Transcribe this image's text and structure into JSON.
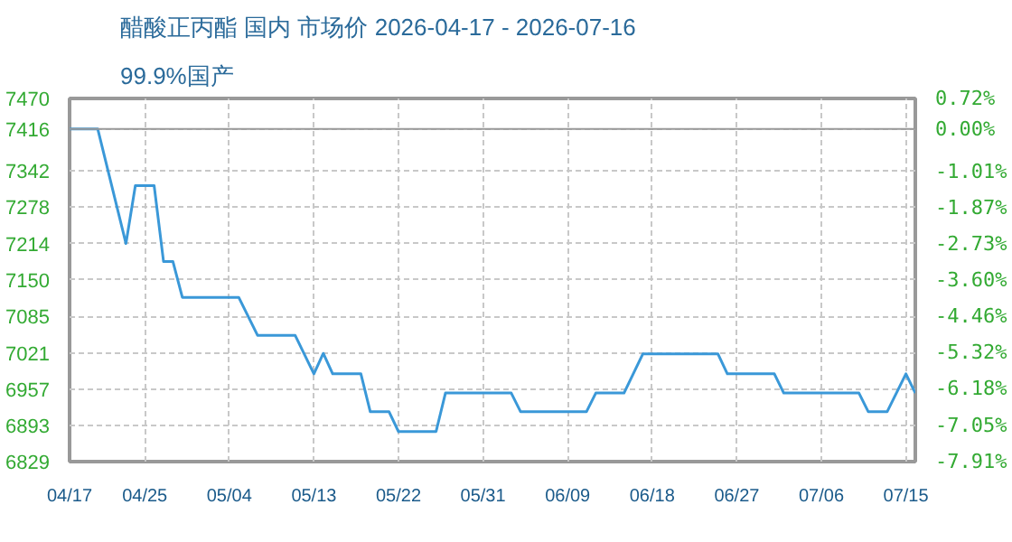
{
  "chart_data": {
    "type": "line",
    "title": "醋酸正丙酯 国内 市场价 2026-04-17 - 2026-07-16",
    "subtitle": "99.9%国产",
    "x": [
      "2026-04-17",
      "2026-04-20",
      "2026-04-23",
      "2026-04-24",
      "2026-04-26",
      "2026-04-27",
      "2026-04-28",
      "2026-04-29",
      "2026-05-05",
      "2026-05-07",
      "2026-05-11",
      "2026-05-13",
      "2026-05-14",
      "2026-05-15",
      "2026-05-18",
      "2026-05-19",
      "2026-05-21",
      "2026-05-22",
      "2026-05-26",
      "2026-05-27",
      "2026-06-03",
      "2026-06-04",
      "2026-06-11",
      "2026-06-12",
      "2026-06-15",
      "2026-06-17",
      "2026-06-25",
      "2026-06-26",
      "2026-07-01",
      "2026-07-02",
      "2026-07-10",
      "2026-07-11",
      "2026-07-13",
      "2026-07-15",
      "2026-07-16"
    ],
    "series": [
      {
        "color": "#3a98d8",
        "values": [
          7416,
          7416,
          7214,
          7316,
          7316,
          7182,
          7182,
          7119,
          7119,
          7052,
          7052,
          6984,
          7020,
          6984,
          6984,
          6917,
          6917,
          6882,
          6882,
          6950,
          6950,
          6917,
          6917,
          6950,
          6950,
          7019,
          7019,
          6984,
          6984,
          6950,
          6950,
          6917,
          6917,
          6984,
          6950
        ]
      }
    ],
    "xlim": [
      "2026-04-17",
      "2026-07-16"
    ],
    "xticks": [
      {
        "value": "2026-04-17",
        "label": "04/17"
      },
      {
        "value": "2026-04-25",
        "label": "04/25"
      },
      {
        "value": "2026-05-04",
        "label": "05/04"
      },
      {
        "value": "2026-05-13",
        "label": "05/13"
      },
      {
        "value": "2026-05-22",
        "label": "05/22"
      },
      {
        "value": "2026-05-31",
        "label": "05/31"
      },
      {
        "value": "2026-06-09",
        "label": "06/09"
      },
      {
        "value": "2026-06-18",
        "label": "06/18"
      },
      {
        "value": "2026-06-27",
        "label": "06/27"
      },
      {
        "value": "2026-07-06",
        "label": "07/06"
      },
      {
        "value": "2026-07-15",
        "label": "07/15"
      }
    ],
    "ylim": [
      6829,
      7470
    ],
    "yticks": [
      6829,
      6893,
      6957,
      7021,
      7085,
      7150,
      7214,
      7278,
      7342,
      7416,
      7470
    ],
    "y2lim": [
      -7.91,
      0.72
    ],
    "y2ticks": [
      {
        "value": -7.91,
        "label": "-7.91%"
      },
      {
        "value": -7.05,
        "label": "-7.05%"
      },
      {
        "value": -6.18,
        "label": "-6.18%"
      },
      {
        "value": -5.32,
        "label": "-5.32%"
      },
      {
        "value": -4.46,
        "label": "-4.46%"
      },
      {
        "value": -3.6,
        "label": "-3.60%"
      },
      {
        "value": -2.73,
        "label": "-2.73%"
      },
      {
        "value": -1.87,
        "label": "-1.87%"
      },
      {
        "value": -1.01,
        "label": "-1.01%"
      },
      {
        "value": 0,
        "label": "0.00%"
      },
      {
        "value": 0.72,
        "label": "0.72%"
      }
    ],
    "grid": true,
    "line_style": "solid",
    "marker": "none"
  }
}
